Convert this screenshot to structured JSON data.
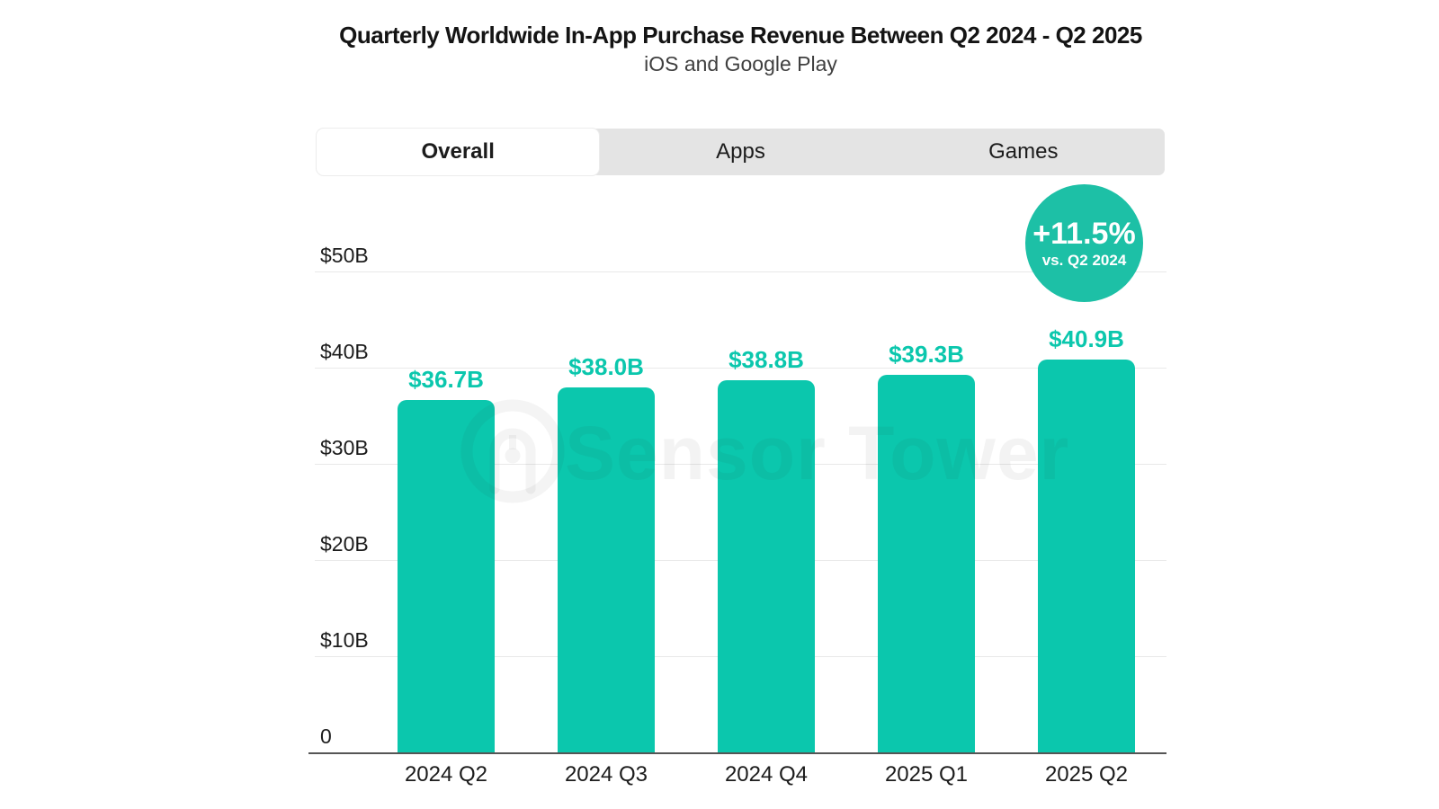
{
  "header": {
    "title": "Quarterly Worldwide In-App Purchase Revenue Between Q2 2024 - Q2 2025",
    "subtitle": "iOS and Google Play"
  },
  "tabs": [
    {
      "label": "Overall",
      "active": true
    },
    {
      "label": "Apps",
      "active": false
    },
    {
      "label": "Games",
      "active": false
    }
  ],
  "badge": {
    "value": "+11.5%",
    "caption": "vs. Q2 2024",
    "color": "#1dc0a6"
  },
  "watermark": {
    "text": "Sensor Tower",
    "logo": "sensor-tower-ring-logo"
  },
  "colors": {
    "bar": "#0bc7ad",
    "bar_label": "#0bc7ad",
    "badge": "#1dc0a6",
    "grid": "#e9e9e9",
    "axis_line": "#555555",
    "tab_bg": "#e4e4e4",
    "tab_active_bg": "#ffffff",
    "text": "#1c1c1c",
    "subtitle_text": "#3f3f3f",
    "watermark": "rgba(30,30,30,0.055)"
  },
  "chart_data": {
    "type": "bar",
    "title": "Quarterly Worldwide In-App Purchase Revenue Between Q2 2024 - Q2 2025",
    "subtitle": "iOS and Google Play",
    "categories": [
      "2024 Q2",
      "2024 Q3",
      "2024 Q4",
      "2025 Q1",
      "2025 Q2"
    ],
    "values": [
      36.7,
      38.0,
      38.8,
      39.3,
      40.9
    ],
    "value_labels": [
      "$36.7B",
      "$38.0B",
      "$38.8B",
      "$39.3B",
      "$40.9B"
    ],
    "unit": "USD billions",
    "xlabel": "",
    "ylabel": "",
    "ylim": [
      0,
      55
    ],
    "yticks": [
      {
        "value": 0,
        "label": "0"
      },
      {
        "value": 10,
        "label": "$10B"
      },
      {
        "value": 20,
        "label": "$20B"
      },
      {
        "value": 30,
        "label": "$30B"
      },
      {
        "value": 40,
        "label": "$40B"
      },
      {
        "value": 50,
        "label": "$50B"
      }
    ],
    "grid": "horizontal-only",
    "legend": "none",
    "annotation": {
      "text": "+11.5%",
      "caption": "vs. Q2 2024",
      "meaning": "growth of 2025 Q2 vs 2024 Q2"
    }
  }
}
